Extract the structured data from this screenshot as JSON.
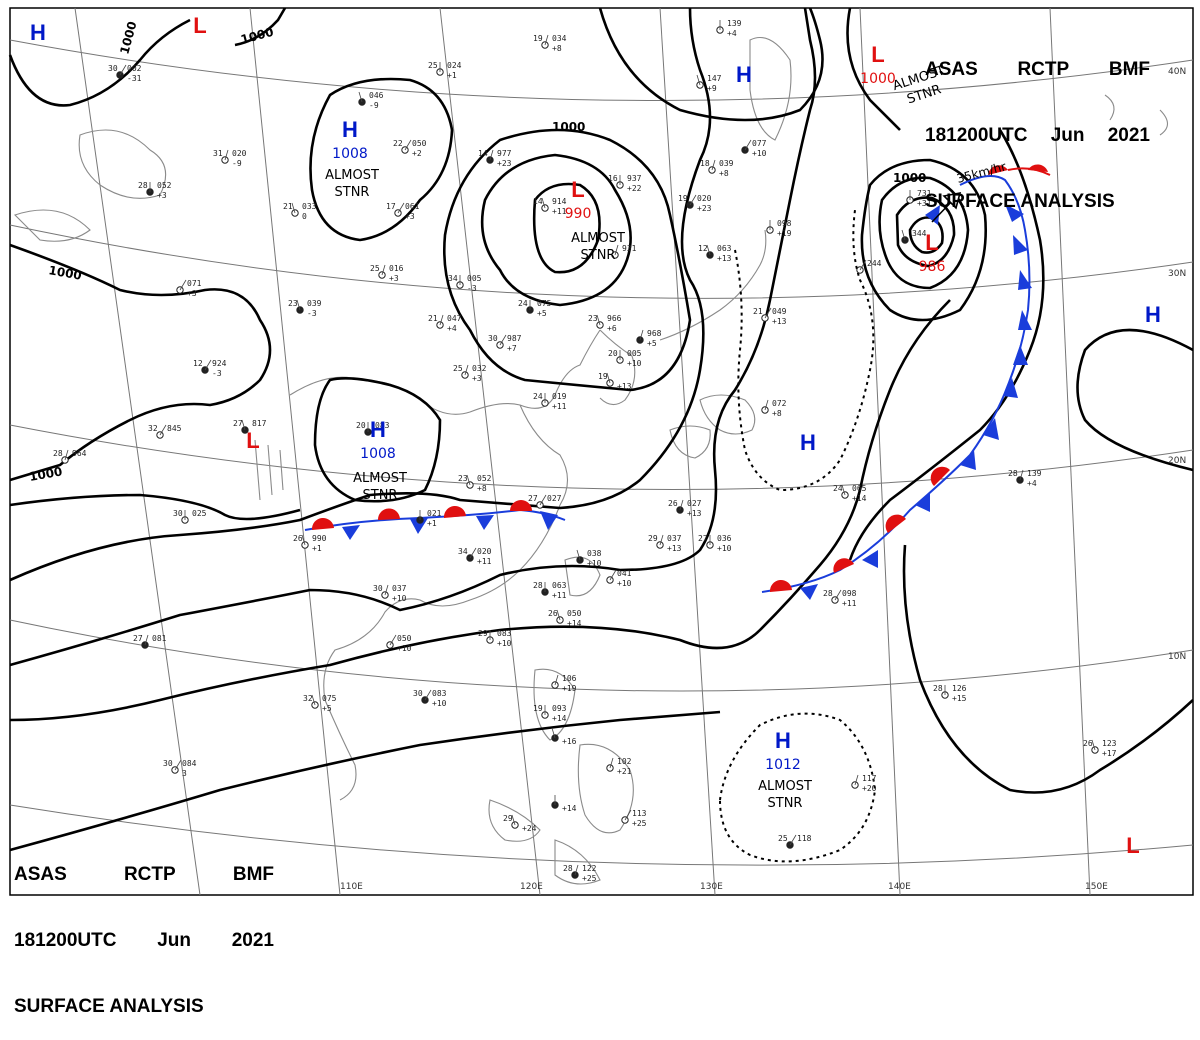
{
  "header": {
    "agency": "ASAS",
    "station": "RCTP",
    "unit": "BMF",
    "time": "181200UTC",
    "month": "Jun",
    "year": "2021",
    "title": "SURFACE ANALYSIS"
  },
  "colors": {
    "high": "#0018c8",
    "low": "#e01010",
    "isobar": "#000000",
    "grid": "#777777",
    "coast": "#888888"
  },
  "grid": {
    "lon_labels": [
      "110E",
      "120E",
      "130E",
      "140E",
      "150E"
    ],
    "lat_labels": [
      "40N",
      "30N",
      "20N",
      "10N"
    ]
  },
  "isobar_labels": [
    "1000",
    "1000",
    "1000",
    "1000",
    "1000",
    "1000"
  ],
  "pressure_centers": [
    {
      "id": "h1",
      "type": "H"
    },
    {
      "id": "l1",
      "type": "L"
    },
    {
      "id": "h2",
      "type": "H",
      "value": "1008",
      "note": "ALMOST STNR"
    },
    {
      "id": "l2",
      "type": "L",
      "value": "990",
      "note": "ALMOST STNR"
    },
    {
      "id": "h3",
      "type": "H"
    },
    {
      "id": "l3",
      "type": "L",
      "value": "1000",
      "note": "ALMOST STNR"
    },
    {
      "id": "l4",
      "type": "L",
      "value": "986"
    },
    {
      "id": "h4",
      "type": "H",
      "value": "1008",
      "note": "ALMOST STNR"
    },
    {
      "id": "l5",
      "type": "L"
    },
    {
      "id": "h5",
      "type": "H"
    },
    {
      "id": "h6",
      "type": "H"
    },
    {
      "id": "h7",
      "type": "H",
      "value": "1012",
      "note": "ALMOST STNR"
    },
    {
      "id": "l6",
      "type": "L"
    }
  ],
  "motion_label": "35km/hr",
  "station_plots": [
    {
      "t": "30",
      "p": "002",
      "d": "-31"
    },
    {
      "t": "19",
      "p": "034",
      "d": "+8"
    },
    {
      "t": "25",
      "p": "024",
      "d": "+1"
    },
    {
      "t": "",
      "p": "046",
      "d": "-9"
    },
    {
      "t": "22",
      "p": "050",
      "d": "+2"
    },
    {
      "t": "31",
      "p": "020",
      "d": "-9"
    },
    {
      "t": "28",
      "p": "052",
      "d": "+3"
    },
    {
      "t": "21",
      "p": "033",
      "d": "0"
    },
    {
      "t": "17",
      "p": "061",
      "d": "+3"
    },
    {
      "t": "14",
      "p": "977",
      "d": "+23"
    },
    {
      "t": "16",
      "p": "937",
      "d": "+22"
    },
    {
      "t": "14",
      "p": "914",
      "d": "+11"
    },
    {
      "t": "19",
      "p": "020",
      "d": "+23"
    },
    {
      "t": "25",
      "p": "016",
      "d": "+3"
    },
    {
      "t": "34",
      "p": "005",
      "d": "-3"
    },
    {
      "t": "23",
      "p": "039",
      "d": "-3"
    },
    {
      "t": "",
      "p": "071",
      "d": "+3"
    },
    {
      "t": "21",
      "p": "047",
      "d": "+4"
    },
    {
      "t": "24",
      "p": "075",
      "d": "+5"
    },
    {
      "t": "23",
      "p": "966",
      "d": "+6"
    },
    {
      "t": "30",
      "p": "987",
      "d": "+7"
    },
    {
      "t": "",
      "p": "968",
      "d": "+5"
    },
    {
      "t": "20",
      "p": "005",
      "d": "+10"
    },
    {
      "t": "19",
      "p": "",
      "d": "+13"
    },
    {
      "t": "12",
      "p": "924",
      "d": "-3"
    },
    {
      "t": "25",
      "p": "032",
      "d": "+3"
    },
    {
      "t": "24",
      "p": "019",
      "d": "+11"
    },
    {
      "t": "27",
      "p": "817",
      "d": ""
    },
    {
      "t": "32",
      "p": "845",
      "d": ""
    },
    {
      "t": "28",
      "p": "964",
      "d": ""
    },
    {
      "t": "20",
      "p": "083",
      "d": ""
    },
    {
      "t": "23",
      "p": "052",
      "d": "+8"
    },
    {
      "t": "27",
      "p": "027",
      "d": ""
    },
    {
      "t": "26",
      "p": "027",
      "d": "+13"
    },
    {
      "t": "30",
      "p": "025",
      "d": ""
    },
    {
      "t": "26",
      "p": "990",
      "d": "+1"
    },
    {
      "t": "34",
      "p": "020",
      "d": "+11"
    },
    {
      "t": "29",
      "p": "037",
      "d": "+13"
    },
    {
      "t": "27",
      "p": "036",
      "d": "+10"
    },
    {
      "t": "",
      "p": "038",
      "d": "+10"
    },
    {
      "t": "",
      "p": "041",
      "d": "+10"
    },
    {
      "t": "30",
      "p": "037",
      "d": "+10"
    },
    {
      "t": "28",
      "p": "063",
      "d": "+11"
    },
    {
      "t": "26",
      "p": "050",
      "d": "+14"
    },
    {
      "t": "",
      "p": "050",
      "d": "+10"
    },
    {
      "t": "27",
      "p": "081",
      "d": ""
    },
    {
      "t": "29",
      "p": "083",
      "d": "+10"
    },
    {
      "t": "32",
      "p": "075",
      "d": "+5"
    },
    {
      "t": "30",
      "p": "083",
      "d": "+10"
    },
    {
      "t": "",
      "p": "106",
      "d": "+19"
    },
    {
      "t": "19",
      "p": "093",
      "d": "+14"
    },
    {
      "t": "",
      "p": "",
      "d": "+16"
    },
    {
      "t": "30",
      "p": "084",
      "d": "3"
    },
    {
      "t": "",
      "p": "102",
      "d": "+21"
    },
    {
      "t": "",
      "p": "",
      "d": "+14"
    },
    {
      "t": "29",
      "p": "",
      "d": "+24"
    },
    {
      "t": "",
      "p": "113",
      "d": "+25"
    },
    {
      "t": "28",
      "p": "122",
      "d": "+25"
    },
    {
      "t": "",
      "p": "139",
      "d": "+4"
    },
    {
      "t": "",
      "p": "147",
      "d": "+9"
    },
    {
      "t": "",
      "p": "077",
      "d": "+10"
    },
    {
      "t": "18",
      "p": "039",
      "d": "+8"
    },
    {
      "t": "",
      "p": "098",
      "d": "+19"
    },
    {
      "t": "12",
      "p": "063",
      "d": "+13"
    },
    {
      "t": "21",
      "p": "049",
      "d": "+13"
    },
    {
      "t": "",
      "p": "072",
      "d": "+8"
    },
    {
      "t": "",
      "p": "021",
      "d": "+1"
    },
    {
      "t": "24",
      "p": "065",
      "d": "+14"
    },
    {
      "t": "28",
      "p": "098",
      "d": "+11"
    },
    {
      "t": "28",
      "p": "139",
      "d": "+4"
    },
    {
      "t": "28",
      "p": "126",
      "d": "+15"
    },
    {
      "t": "26",
      "p": "123",
      "d": "+17"
    },
    {
      "t": "25",
      "p": "118",
      "d": ""
    },
    {
      "t": "",
      "p": "117",
      "d": "+20"
    },
    {
      "t": "",
      "p": "731",
      "d": "+31"
    },
    {
      "t": "",
      "p": "344",
      "d": ""
    },
    {
      "t": "",
      "p": "244",
      "d": ""
    },
    {
      "t": "",
      "p": "931",
      "d": ""
    }
  ]
}
